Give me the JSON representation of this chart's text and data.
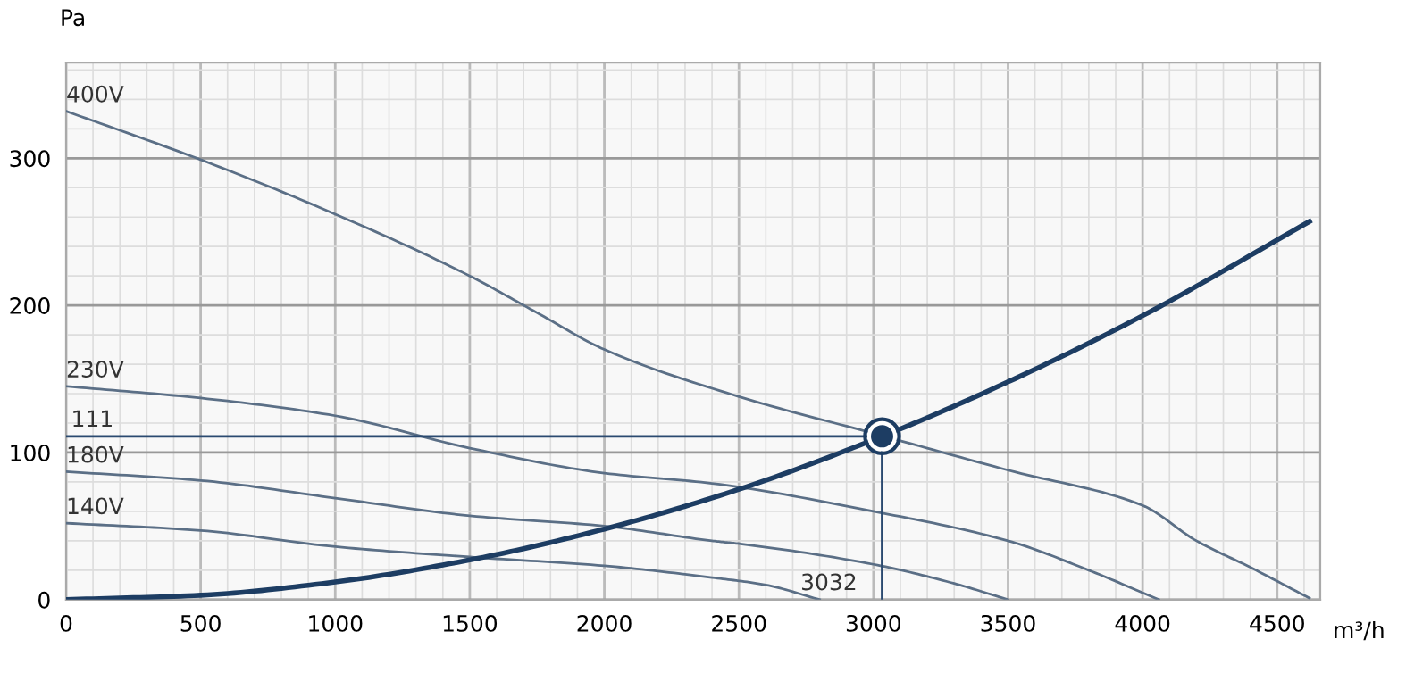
{
  "chart_data": {
    "type": "line",
    "xlabel": "m³/h",
    "ylabel": "Pa",
    "xlim": [
      0,
      4660
    ],
    "ylim": [
      0,
      365
    ],
    "xticks": [
      0,
      500,
      1000,
      1500,
      2000,
      2500,
      3000,
      3500,
      4000,
      4500
    ],
    "yticks": [
      0,
      100,
      200,
      300
    ],
    "grid": true,
    "legend": false,
    "marker": "none",
    "line_style": "solid",
    "series": [
      {
        "name": "400V",
        "color": "#5b6f86",
        "x": [
          0,
          500,
          1000,
          1500,
          1750,
          2000,
          2500,
          3000,
          3500,
          4000,
          4200,
          4400,
          4620
        ],
        "values": [
          332,
          299,
          262,
          220,
          195,
          170,
          138,
          113,
          88,
          64,
          40,
          22,
          1
        ]
      },
      {
        "name": "230V",
        "color": "#5b6f86",
        "x": [
          0,
          500,
          1000,
          1500,
          2000,
          2400,
          3000,
          3500,
          3800,
          4060
        ],
        "values": [
          145,
          137,
          125,
          103,
          86,
          79,
          60,
          40,
          20,
          0
        ]
      },
      {
        "name": "180V",
        "color": "#5b6f86",
        "x": [
          0,
          500,
          1000,
          1500,
          2000,
          2400,
          2500,
          3000,
          3300,
          3500
        ],
        "values": [
          87,
          81,
          69,
          57,
          50,
          40,
          38,
          24,
          11,
          0
        ]
      },
      {
        "name": "140V",
        "color": "#5b6f86",
        "x": [
          0,
          500,
          1000,
          1500,
          2000,
          2400,
          2600,
          2800
        ],
        "values": [
          52,
          47,
          36,
          29,
          23,
          15,
          10,
          0
        ]
      },
      {
        "color": "#1d3d63",
        "x": [
          0,
          500,
          1000,
          1500,
          2000,
          2500,
          3032,
          3500,
          4000,
          4620
        ],
        "values": [
          0,
          3,
          12,
          27,
          48,
          75,
          111,
          148,
          193,
          257
        ]
      },
      {
        "color": "#2b4a70",
        "x": [
          0,
          3032
        ],
        "values": [
          111,
          111
        ]
      },
      {
        "color": "#2b4a70",
        "x": [
          3032,
          3032
        ],
        "values": [
          0,
          111
        ]
      },
      {
        "type": "scatter",
        "marker": "circle",
        "color": "#1d3d63",
        "x": [
          3032
        ],
        "values": [
          111
        ]
      }
    ],
    "annotations": [
      {
        "text": "111",
        "x": 0,
        "y": 111
      },
      {
        "text": "3032",
        "x": 3032,
        "y": 0
      }
    ]
  }
}
